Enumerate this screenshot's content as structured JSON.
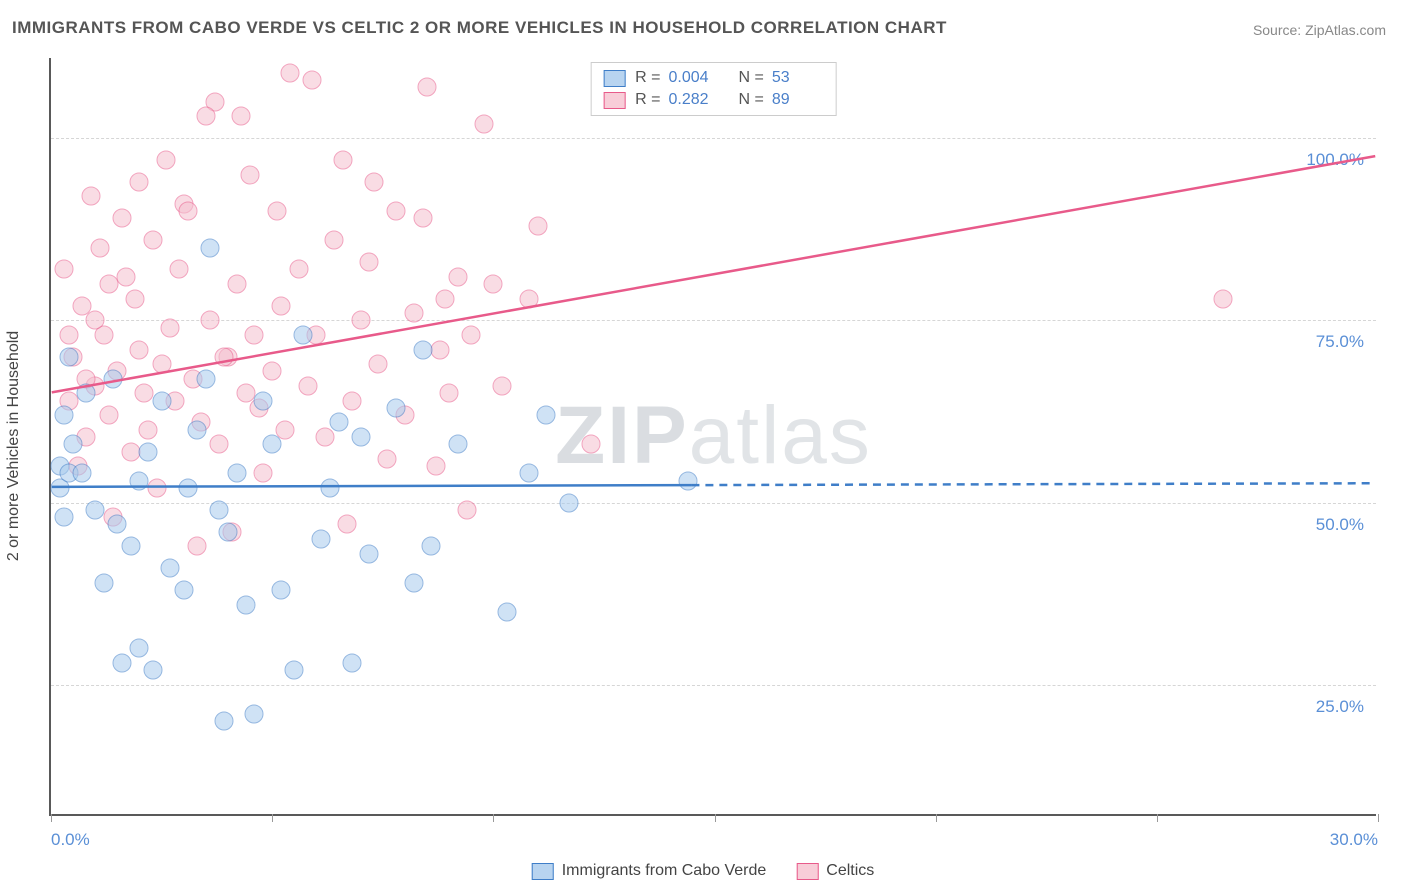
{
  "title": "IMMIGRANTS FROM CABO VERDE VS CELTIC 2 OR MORE VEHICLES IN HOUSEHOLD CORRELATION CHART",
  "source": "Source: ZipAtlas.com",
  "watermark_a": "ZIP",
  "watermark_b": "atlas",
  "ylabel": "2 or more Vehicles in Household",
  "chart": {
    "type": "scatter",
    "xlim": [
      0,
      30
    ],
    "ylim": [
      7,
      111
    ],
    "grid_color": "#d6d6d6",
    "background_color": "#ffffff",
    "axis_color": "#595959",
    "ytick_values": [
      25,
      50,
      75,
      100
    ],
    "ytick_labels": [
      "25.0%",
      "50.0%",
      "75.0%",
      "100.0%"
    ],
    "xtick_values": [
      0,
      5,
      10,
      15,
      20,
      25,
      30
    ],
    "xtick_labels": {
      "0": "0.0%",
      "30": "30.0%"
    },
    "series": {
      "blue": {
        "label": "Immigrants from Cabo Verde",
        "fill": "#a8cbed",
        "stroke": "#3f7ec8",
        "r_value": "0.004",
        "n_value": "53",
        "trend": {
          "y_at_x0": 52.0,
          "y_at_x30": 52.5,
          "solid_until_x": 14.5
        },
        "points": [
          [
            0.2,
            55
          ],
          [
            0.2,
            52
          ],
          [
            0.3,
            62
          ],
          [
            0.4,
            54
          ],
          [
            0.3,
            48
          ],
          [
            0.5,
            58
          ],
          [
            0.4,
            70
          ],
          [
            0.8,
            65
          ],
          [
            0.7,
            54
          ],
          [
            1.0,
            49
          ],
          [
            1.2,
            39
          ],
          [
            1.5,
            47
          ],
          [
            2.0,
            53
          ],
          [
            1.4,
            67
          ],
          [
            1.8,
            44
          ],
          [
            2.2,
            57
          ],
          [
            2.5,
            64
          ],
          [
            2.7,
            41
          ],
          [
            1.6,
            28
          ],
          [
            2.3,
            27
          ],
          [
            3.0,
            38
          ],
          [
            3.3,
            60
          ],
          [
            3.6,
            85
          ],
          [
            2.0,
            30
          ],
          [
            3.1,
            52
          ],
          [
            3.5,
            67
          ],
          [
            3.8,
            49
          ],
          [
            4.2,
            54
          ],
          [
            4.4,
            36
          ],
          [
            4.8,
            64
          ],
          [
            4.6,
            21
          ],
          [
            5.2,
            38
          ],
          [
            4.0,
            46
          ],
          [
            5.5,
            27
          ],
          [
            5.7,
            73
          ],
          [
            6.1,
            45
          ],
          [
            6.3,
            52
          ],
          [
            6.5,
            61
          ],
          [
            6.8,
            28
          ],
          [
            7.0,
            59
          ],
          [
            7.2,
            43
          ],
          [
            7.8,
            63
          ],
          [
            8.2,
            39
          ],
          [
            8.4,
            71
          ],
          [
            8.6,
            44
          ],
          [
            9.2,
            58
          ],
          [
            10.8,
            54
          ],
          [
            11.2,
            62
          ],
          [
            11.7,
            50
          ],
          [
            14.4,
            53
          ],
          [
            10.3,
            35
          ],
          [
            3.9,
            20
          ],
          [
            5.0,
            58
          ]
        ]
      },
      "pink": {
        "label": "Celtics",
        "fill": "#f5c0cf",
        "stroke": "#e85a8a",
        "r_value": "0.282",
        "n_value": "89",
        "trend": {
          "y_at_x0": 65.0,
          "y_at_x30": 97.5,
          "solid_until_x": 30
        },
        "points": [
          [
            0.3,
            82
          ],
          [
            0.4,
            64
          ],
          [
            0.5,
            70
          ],
          [
            0.7,
            77
          ],
          [
            0.8,
            59
          ],
          [
            1.0,
            66
          ],
          [
            0.6,
            55
          ],
          [
            1.2,
            73
          ],
          [
            1.3,
            62
          ],
          [
            1.5,
            68
          ],
          [
            1.7,
            81
          ],
          [
            1.8,
            57
          ],
          [
            2.0,
            71
          ],
          [
            2.1,
            65
          ],
          [
            2.2,
            60
          ],
          [
            1.9,
            78
          ],
          [
            2.3,
            86
          ],
          [
            2.5,
            69
          ],
          [
            2.7,
            74
          ],
          [
            2.8,
            64
          ],
          [
            3.0,
            91
          ],
          [
            3.2,
            67
          ],
          [
            3.4,
            61
          ],
          [
            3.6,
            75
          ],
          [
            3.8,
            58
          ],
          [
            2.6,
            97
          ],
          [
            3.1,
            90
          ],
          [
            2.9,
            82
          ],
          [
            4.0,
            70
          ],
          [
            4.2,
            80
          ],
          [
            4.4,
            65
          ],
          [
            4.6,
            73
          ],
          [
            4.8,
            54
          ],
          [
            5.0,
            68
          ],
          [
            5.2,
            77
          ],
          [
            4.1,
            46
          ],
          [
            3.3,
            44
          ],
          [
            1.4,
            48
          ],
          [
            1.1,
            85
          ],
          [
            5.4,
            109
          ],
          [
            5.6,
            82
          ],
          [
            5.8,
            66
          ],
          [
            6.0,
            73
          ],
          [
            3.7,
            105
          ],
          [
            6.2,
            59
          ],
          [
            6.4,
            86
          ],
          [
            6.8,
            64
          ],
          [
            7.0,
            75
          ],
          [
            5.9,
            108
          ],
          [
            4.5,
            95
          ],
          [
            7.2,
            83
          ],
          [
            7.4,
            69
          ],
          [
            7.8,
            90
          ],
          [
            8.0,
            62
          ],
          [
            8.2,
            76
          ],
          [
            6.6,
            97
          ],
          [
            8.4,
            89
          ],
          [
            8.8,
            71
          ],
          [
            8.5,
            107
          ],
          [
            9.0,
            65
          ],
          [
            9.2,
            81
          ],
          [
            7.6,
            56
          ],
          [
            9.5,
            73
          ],
          [
            9.8,
            102
          ],
          [
            10.0,
            80
          ],
          [
            9.4,
            49
          ],
          [
            8.7,
            55
          ],
          [
            2.4,
            52
          ],
          [
            10.2,
            66
          ],
          [
            10.8,
            78
          ],
          [
            11.0,
            88
          ],
          [
            12.2,
            58
          ],
          [
            0.9,
            92
          ],
          [
            1.6,
            89
          ],
          [
            6.7,
            47
          ],
          [
            3.5,
            103
          ],
          [
            3.9,
            70
          ],
          [
            4.7,
            63
          ],
          [
            5.3,
            60
          ],
          [
            2.0,
            94
          ],
          [
            1.0,
            75
          ],
          [
            1.3,
            80
          ],
          [
            0.4,
            73
          ],
          [
            0.8,
            67
          ],
          [
            26.5,
            78
          ],
          [
            8.9,
            78
          ],
          [
            7.3,
            94
          ],
          [
            4.3,
            103
          ],
          [
            5.1,
            90
          ]
        ]
      }
    }
  },
  "legend_top_label_r": "R =",
  "legend_top_label_n": "N ="
}
